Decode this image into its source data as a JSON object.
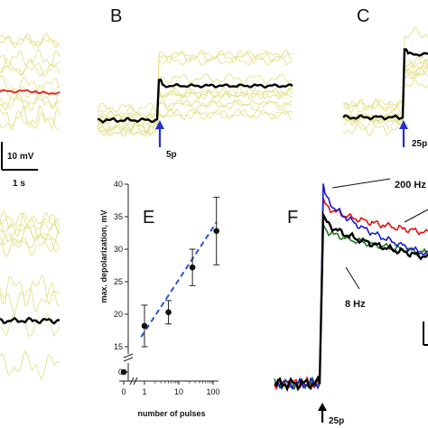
{
  "panels": {
    "b": "B",
    "c": "C",
    "e": "E",
    "f": "F"
  },
  "scale_bars": {
    "voltage": "10 mV",
    "time": "1 s"
  },
  "stimulus_labels": {
    "b": "5p",
    "c": "25p",
    "f": "25p"
  },
  "frequency_labels": [
    {
      "text": "200 Hz",
      "color": "#1a1acc"
    },
    {
      "text": "8 Hz",
      "color": "#1f7a1f"
    }
  ],
  "colors": {
    "individual_traces": "#e6e08a",
    "mean_trace": "#000000",
    "baseline_trace": "#e03030",
    "stim_arrow": "#2233cc",
    "fit_line": "#2a55cc",
    "trace_200hz": "#1a1acc",
    "trace_red": "#dd1111",
    "trace_8hz": "#1f7a1f"
  },
  "chart_data": {
    "type": "scatter",
    "xlabel": "number of pulses",
    "ylabel": "max. depolarization, mV",
    "x_scale": "log (broken axis with 0 category)",
    "x_ticks": [
      "0",
      "1",
      "10",
      "100"
    ],
    "y_ticks": [
      "0",
      "15",
      "20",
      "25",
      "30",
      "35",
      "40"
    ],
    "y_axis_break": true,
    "ylim": [
      15,
      40
    ],
    "points": [
      {
        "x": 0,
        "y": 0,
        "err": 0
      },
      {
        "x": 1,
        "y": 18.2,
        "err": 3.2
      },
      {
        "x": 5,
        "y": 20.3,
        "err": 1.8
      },
      {
        "x": 25,
        "y": 27.2,
        "err": 2.8
      },
      {
        "x": 125,
        "y": 32.8,
        "err": 5.2
      }
    ],
    "fit": {
      "style": "dashed",
      "x": [
        0.8,
        200
      ],
      "y": [
        16.5,
        34.2
      ]
    },
    "grid": false,
    "legend": "none"
  }
}
